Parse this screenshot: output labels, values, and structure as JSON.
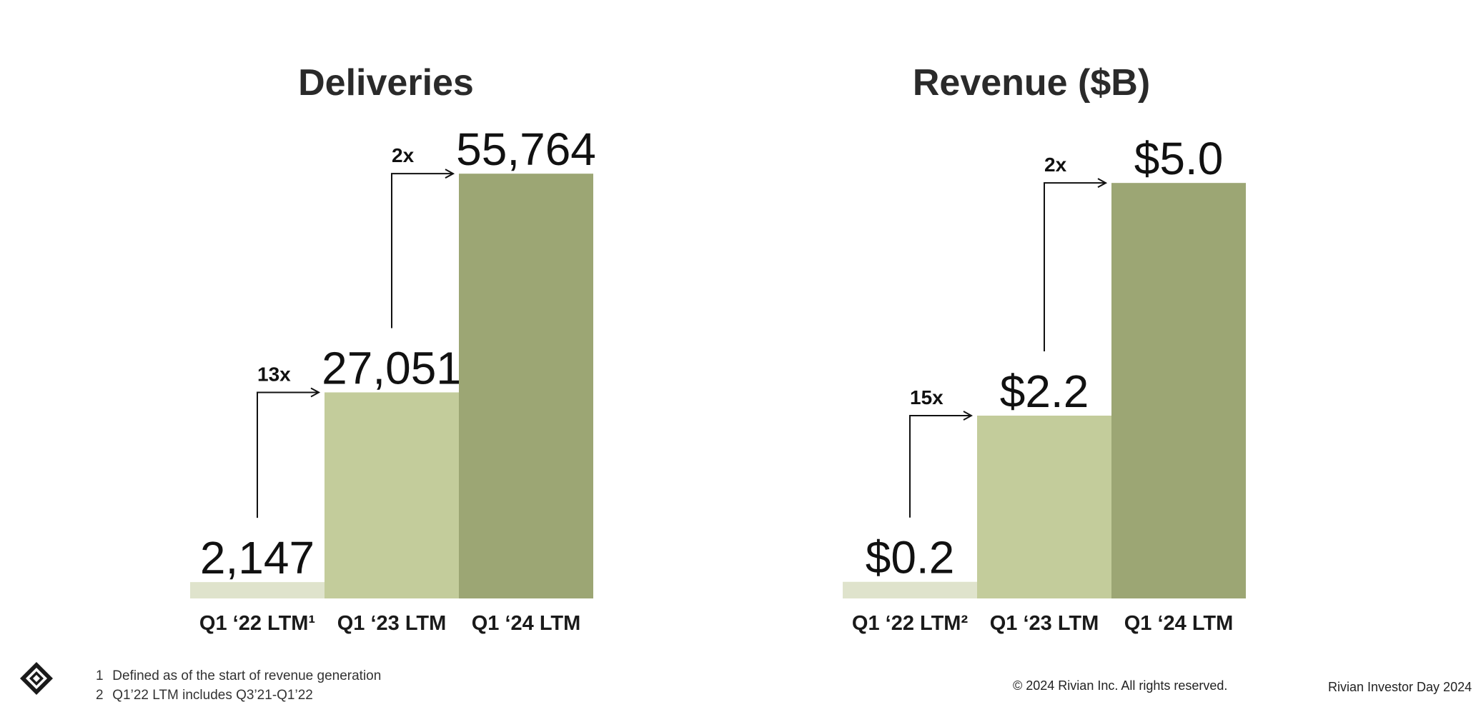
{
  "chart_data": [
    {
      "type": "bar",
      "title": "Deliveries",
      "categories": [
        "Q1 ‘22 LTM¹",
        "Q1 ‘23 LTM",
        "Q1 ‘24 LTM"
      ],
      "values": [
        2147,
        27051,
        55764
      ],
      "value_labels": [
        "2,147",
        "27,051",
        "55,764"
      ],
      "ylim": [
        0,
        60000
      ],
      "colors": [
        "#dfe3cc",
        "#c3cc9b",
        "#9ca674"
      ],
      "growth_annotations": [
        {
          "from": 0,
          "to": 1,
          "label": "13x"
        },
        {
          "from": 1,
          "to": 2,
          "label": "2x"
        }
      ],
      "grid": false
    },
    {
      "type": "bar",
      "title": "Revenue ($B)",
      "categories": [
        "Q1 ‘22 LTM²",
        "Q1 ‘23 LTM",
        "Q1 ‘24 LTM"
      ],
      "values": [
        0.2,
        2.2,
        5.0
      ],
      "value_labels": [
        "$0.2",
        "$2.2",
        "$5.0"
      ],
      "ylim": [
        0,
        5.5
      ],
      "colors": [
        "#dfe3cc",
        "#c3cc9b",
        "#9ca674"
      ],
      "growth_annotations": [
        {
          "from": 0,
          "to": 1,
          "label": "15x"
        },
        {
          "from": 1,
          "to": 2,
          "label": "2x"
        }
      ],
      "grid": false
    }
  ],
  "footnotes": [
    {
      "num": "1",
      "text": "Defined as of the start of revenue generation"
    },
    {
      "num": "2",
      "text": "Q1’22 LTM includes Q3’21-Q1’22"
    }
  ],
  "copyright": "© 2024 Rivian Inc. All rights reserved.",
  "event": "Rivian Investor Day 2024",
  "logo_icon": "rivian-logo-icon"
}
